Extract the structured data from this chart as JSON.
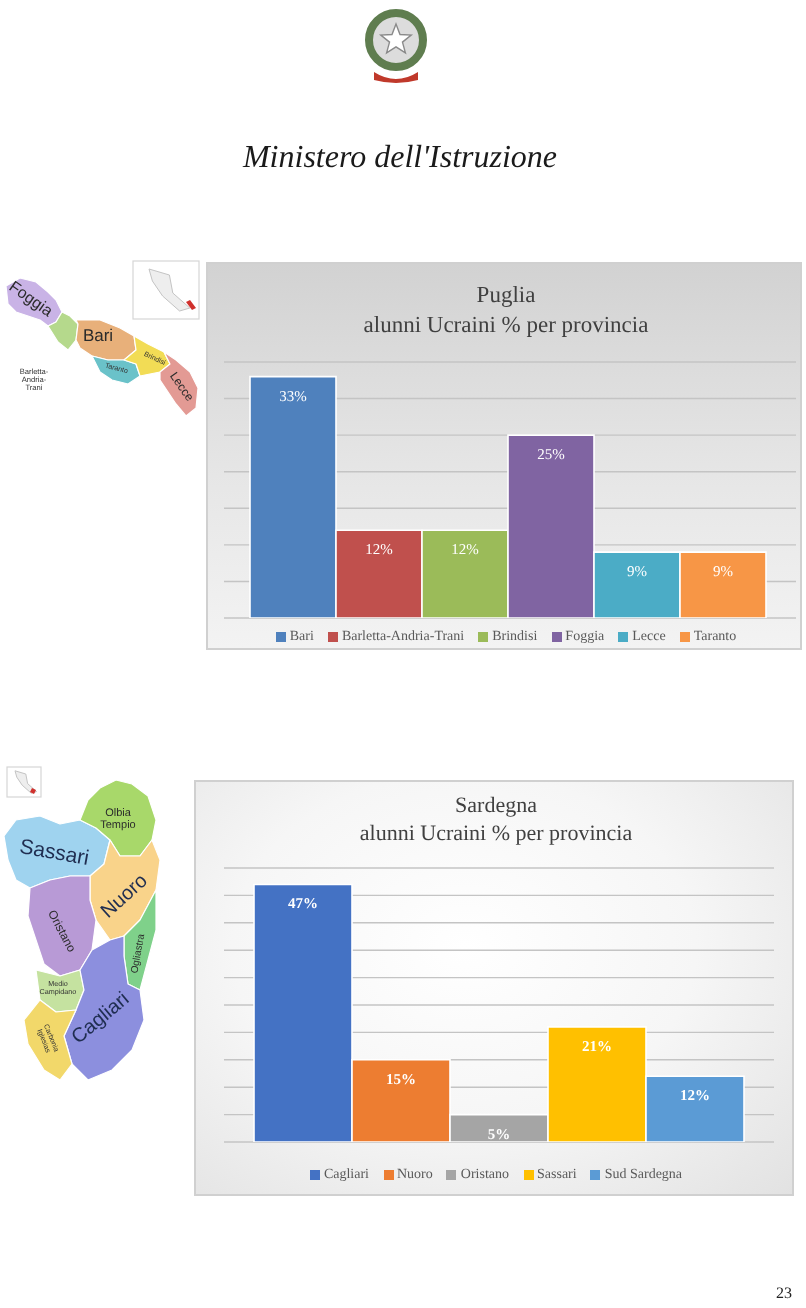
{
  "chart_data": [
    {
      "type": "bar",
      "title": "Puglia",
      "subtitle": "alunni Ucraini % per provincia",
      "categories": [
        null
      ],
      "series": [
        {
          "name": "Bari",
          "color": "#4f81bd",
          "values": [
            33
          ],
          "value_labels": [
            "33%"
          ]
        },
        {
          "name": "Barletta-Andria-Trani",
          "color": "#c0504d",
          "values": [
            12
          ],
          "value_labels": [
            "12%"
          ]
        },
        {
          "name": "Brindisi",
          "color": "#9bbb59",
          "values": [
            12
          ],
          "value_labels": [
            "12%"
          ]
        },
        {
          "name": "Foggia",
          "color": "#8064a2",
          "values": [
            25
          ],
          "value_labels": [
            "25%"
          ]
        },
        {
          "name": "Lecce",
          "color": "#4bacc6",
          "values": [
            9
          ],
          "value_labels": [
            "9%"
          ]
        },
        {
          "name": "Taranto",
          "color": "#f79646",
          "values": [
            9
          ],
          "value_labels": [
            "9%"
          ]
        }
      ],
      "ylim": [
        0,
        35
      ],
      "grid": "y",
      "legend": "bottom",
      "tick_labels": false,
      "annotations": [
        "Ministero dell'Istruzione",
        "Foggia",
        "Bari",
        "Barletta-Andria-Trani",
        "Brindisi",
        "Taranto",
        "Lecce"
      ]
    },
    {
      "type": "bar",
      "title": "Sardegna",
      "subtitle": "alunni Ucraini % per provincia",
      "categories": [
        null
      ],
      "series": [
        {
          "name": "Cagliari",
          "color": "#4472c4",
          "values": [
            47
          ],
          "value_labels": [
            "47%"
          ]
        },
        {
          "name": "Nuoro",
          "color": "#ed7d31",
          "values": [
            15
          ],
          "value_labels": [
            "15%"
          ]
        },
        {
          "name": "Oristano",
          "color": "#a5a5a5",
          "values": [
            5
          ],
          "value_labels": [
            "5%"
          ]
        },
        {
          "name": "Sassari",
          "color": "#ffc000",
          "values": [
            21
          ],
          "value_labels": [
            "21%"
          ]
        },
        {
          "name": "Sud Sardegna",
          "color": "#5b9bd5",
          "values": [
            12
          ],
          "value_labels": [
            "12%"
          ]
        }
      ],
      "ylim": [
        0,
        50
      ],
      "grid": "y",
      "legend": "bottom",
      "tick_labels": false,
      "annotations": [
        "Olbia Tempio",
        "Sassari",
        "Nuoro",
        "Oristano",
        "Ogliastra",
        "Medio Campidano",
        "Cagliari",
        "Carbonia Iglesias",
        "23"
      ]
    }
  ]
}
